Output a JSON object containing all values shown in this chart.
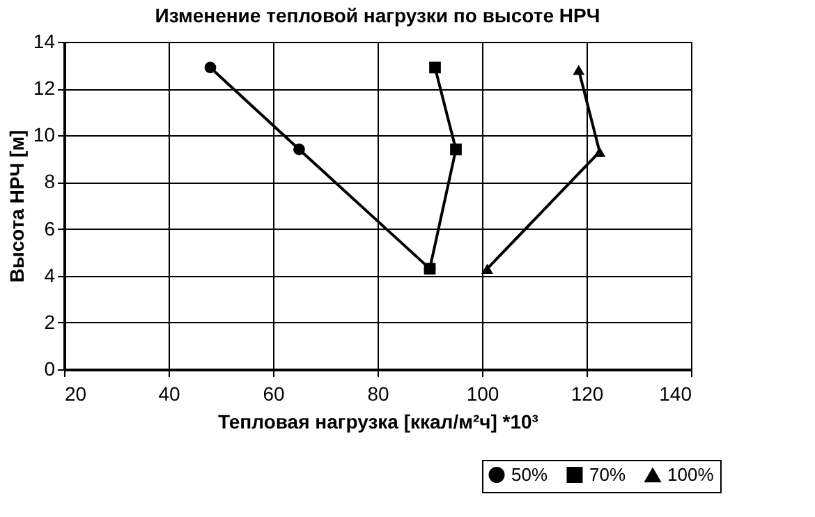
{
  "chart_data": {
    "type": "line",
    "title": "Изменение тепловой нагрузки по высоте НРЧ",
    "xlabel": "Тепловая нагрузка [ккал/м²ч] *10³",
    "ylabel": "Высота НРЧ [м]",
    "xlim": [
      20,
      140
    ],
    "xticks": [
      20,
      40,
      60,
      80,
      100,
      120,
      140
    ],
    "ylim": [
      0,
      14
    ],
    "yticks": [
      0,
      2,
      4,
      6,
      8,
      10,
      12,
      14
    ],
    "grid": true,
    "legend": "bottom right",
    "series": [
      {
        "name": "50%",
        "color": "#000000",
        "marker": "circle",
        "x": [
          48,
          65,
          90
        ],
        "values": [
          12.9,
          9.4,
          4.3
        ]
      },
      {
        "name": "70%",
        "color": "#000000",
        "marker": "square",
        "x": [
          91,
          95,
          90
        ],
        "values": [
          12.9,
          9.4,
          4.3
        ]
      },
      {
        "name": "100%",
        "color": "#000000",
        "marker": "triangle",
        "x": [
          118.5,
          122.5,
          101
        ],
        "values": [
          12.8,
          9.3,
          4.3
        ]
      }
    ]
  }
}
